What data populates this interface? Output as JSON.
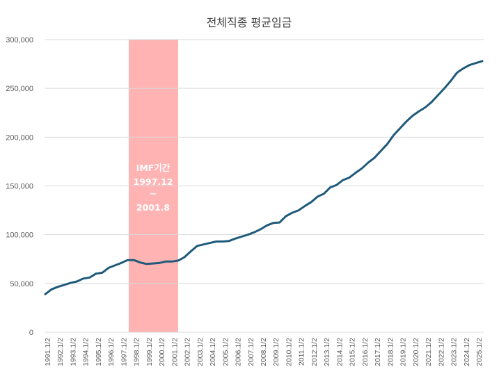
{
  "chart_data": {
    "type": "line",
    "title": "전체직종 평균임금",
    "xlabel": "",
    "ylabel": "",
    "ylim": [
      0,
      300000
    ],
    "yticks": [
      0,
      50000,
      100000,
      150000,
      200000,
      250000,
      300000
    ],
    "ytick_labels": [
      "0",
      "50,000",
      "100,000",
      "150,000",
      "200,000",
      "250,000",
      "300,000"
    ],
    "x_tick_labels": [
      "1991.1/2",
      "1992.1/2",
      "1993.1/2",
      "1994.1/2",
      "1995.1/2",
      "1996.1/2",
      "1997.1/2",
      "1998.1/2",
      "1999.1/2",
      "2000.1/2",
      "2001.1/2",
      "2002.1/2",
      "2003.1/2",
      "2004.1/2",
      "2005.1/2",
      "2006.1/2",
      "2007.1/2",
      "2008.1/2",
      "2009.1/2",
      "2010.1/2",
      "2011.1/2",
      "2012.1/2",
      "2013.1/2",
      "2014.1/2",
      "2015.1/2",
      "2016.1/2",
      "2017.1/2",
      "2018.1/2",
      "2019.1/2",
      "2020.1/2",
      "2021.1/2",
      "2022.1/2",
      "2023.1/2",
      "2024.1/2",
      "2025.1/2"
    ],
    "grid": true,
    "line_color": "#1f5a7a",
    "highlight_color": "#ffb3b3",
    "highlight_range": [
      "1997.12",
      "2001.8"
    ],
    "highlight_label_lines": [
      "IMF기간",
      "1997.12",
      "~",
      "2001.8"
    ],
    "series": [
      {
        "values": [
          39000,
          44000,
          46500,
          48500,
          50500,
          52000,
          55000,
          56000,
          60000,
          61000,
          66000,
          68500,
          71000,
          74000,
          74000,
          71500,
          70000,
          70500,
          71000,
          72500,
          72500,
          73500,
          77000,
          83000,
          88500,
          90000,
          91500,
          93000,
          93000,
          93500,
          96000,
          98000,
          100000,
          102500,
          105500,
          109500,
          112000,
          112500,
          119000,
          122500,
          125000,
          129500,
          133500,
          139000,
          142000,
          148500,
          151000,
          156000,
          158500,
          163500,
          168000,
          174000,
          179000,
          186000,
          193000,
          202000,
          209000,
          216000,
          222000,
          226500,
          230500,
          236000,
          243000,
          250000,
          257500,
          266000,
          270500,
          274000,
          276000,
          278000
        ]
      }
    ]
  }
}
